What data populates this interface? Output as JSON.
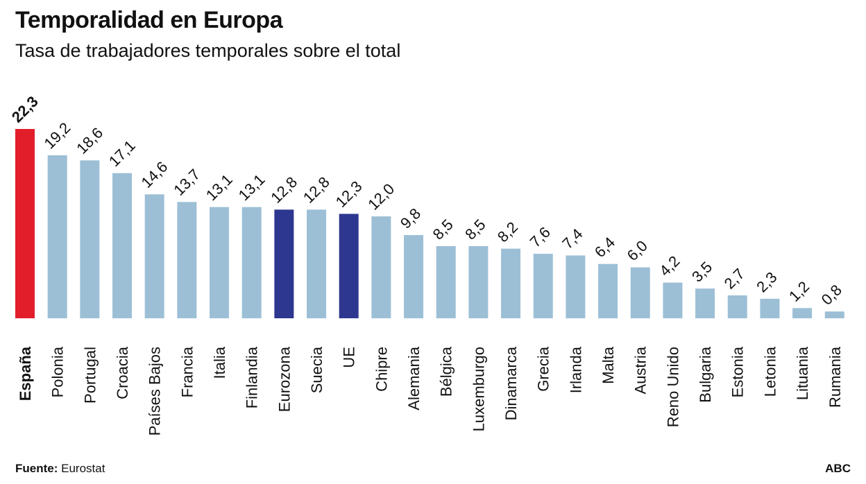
{
  "chart_data": {
    "type": "bar",
    "title": "Temporalidad en Europa",
    "subtitle": "Tasa de trabajadores temporales sobre el total",
    "categories": [
      "España",
      "Polonia",
      "Portugal",
      "Croacia",
      "Países Bajos",
      "Francia",
      "Italia",
      "Finlandia",
      "Eurozona",
      "Suecia",
      "UE",
      "Chipre",
      "Alemania",
      "Bélgica",
      "Luxemburgo",
      "Dinamarca",
      "Grecia",
      "Irlanda",
      "Malta",
      "Austria",
      "Reno Unido",
      "Bulgaria",
      "Estonia",
      "Letonia",
      "Lituania",
      "Rumania"
    ],
    "values": [
      22.3,
      19.2,
      18.6,
      17.1,
      14.6,
      13.7,
      13.1,
      13.1,
      12.8,
      12.8,
      12.3,
      12.0,
      9.8,
      8.5,
      8.5,
      8.2,
      7.6,
      7.4,
      6.4,
      6.0,
      4.2,
      3.5,
      2.7,
      2.3,
      1.2,
      0.8
    ],
    "value_labels": [
      "22,3",
      "19,2",
      "18,6",
      "17,1",
      "14,6",
      "13,7",
      "13,1",
      "13,1",
      "12,8",
      "12,8",
      "12,3",
      "12,0",
      "9,8",
      "8,5",
      "8,5",
      "8,2",
      "7,6",
      "7,4",
      "6,4",
      "6,0",
      "4,2",
      "3,5",
      "2,7",
      "2,3",
      "1,2",
      "0,8"
    ],
    "highlight": {
      "España": "#e31e2b",
      "Eurozona": "#2e3790",
      "UE": "#2e3790"
    },
    "default_color": "#9cbfd6",
    "ylim": [
      0,
      22.3
    ],
    "grid": false,
    "xlabel": "",
    "ylabel": ""
  },
  "footer": {
    "source_label": "Fuente:",
    "source": "Eurostat",
    "brand": "ABC"
  }
}
